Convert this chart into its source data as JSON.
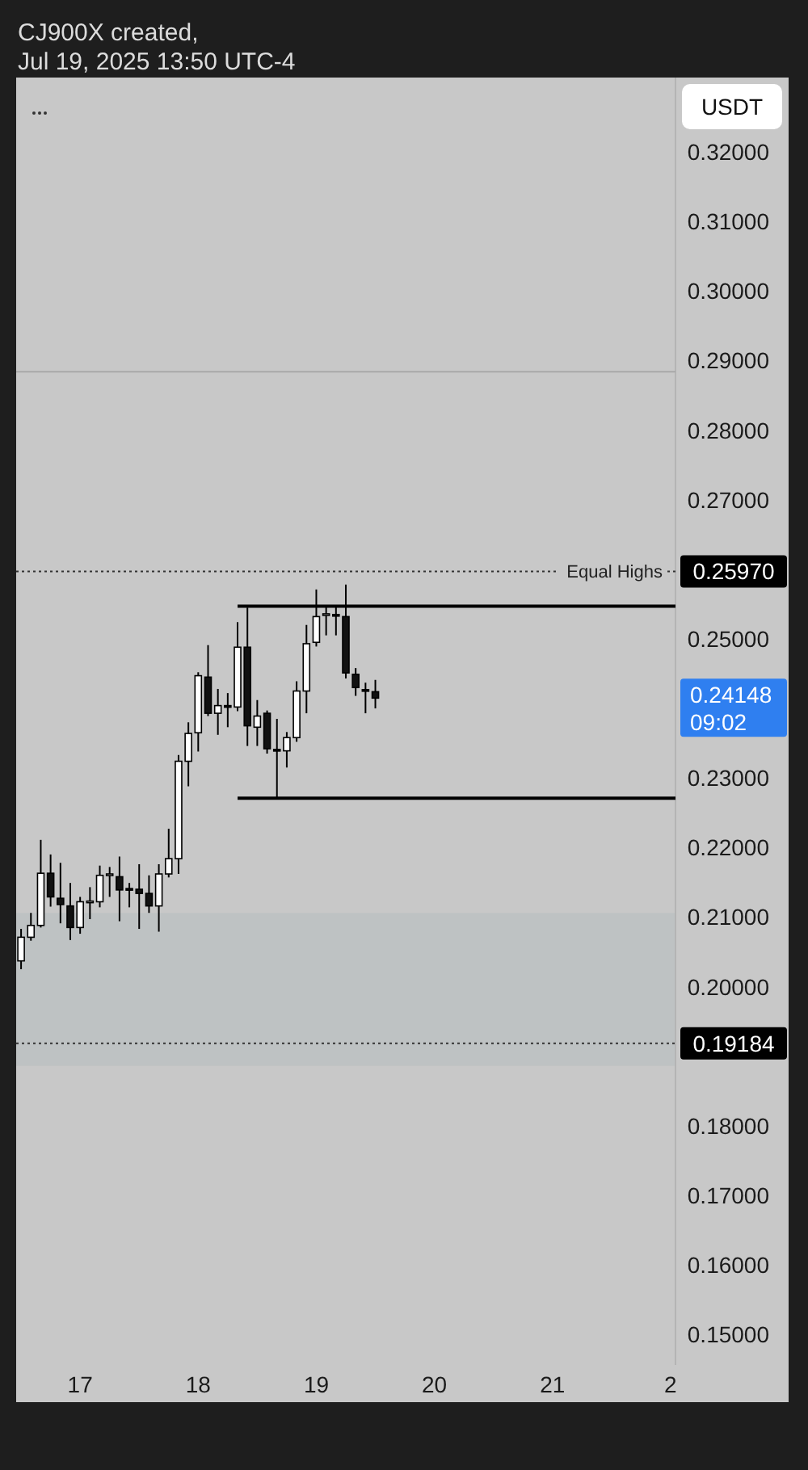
{
  "chart_data": {
    "type": "candlestick",
    "x": [
      "2025-07-16T12:00",
      "2025-07-16T14:00",
      "2025-07-16T16:00",
      "2025-07-16T18:00",
      "2025-07-16T20:00",
      "2025-07-16T22:00",
      "2025-07-17T00:00",
      "2025-07-17T02:00",
      "2025-07-17T04:00",
      "2025-07-17T06:00",
      "2025-07-17T08:00",
      "2025-07-17T10:00",
      "2025-07-17T12:00",
      "2025-07-17T14:00",
      "2025-07-17T16:00",
      "2025-07-17T18:00",
      "2025-07-17T20:00",
      "2025-07-17T22:00",
      "2025-07-18T00:00",
      "2025-07-18T02:00",
      "2025-07-18T04:00",
      "2025-07-18T06:00",
      "2025-07-18T08:00",
      "2025-07-18T10:00",
      "2025-07-18T12:00",
      "2025-07-18T14:00",
      "2025-07-18T16:00",
      "2025-07-18T18:00",
      "2025-07-18T20:00",
      "2025-07-18T22:00",
      "2025-07-19T00:00",
      "2025-07-19T02:00",
      "2025-07-19T04:00",
      "2025-07-19T06:00",
      "2025-07-19T08:00",
      "2025-07-19T10:00",
      "2025-07-19T12:00"
    ],
    "ohlc": [
      [
        0.2037,
        0.2083,
        0.2025,
        0.2071
      ],
      [
        0.2071,
        0.2106,
        0.2066,
        0.2088
      ],
      [
        0.2088,
        0.2211,
        0.2085,
        0.2163
      ],
      [
        0.2163,
        0.219,
        0.2115,
        0.2129
      ],
      [
        0.2127,
        0.2178,
        0.2091,
        0.2118
      ],
      [
        0.2116,
        0.2149,
        0.2067,
        0.2085
      ],
      [
        0.2085,
        0.2129,
        0.2076,
        0.2122
      ],
      [
        0.2122,
        0.2143,
        0.2097,
        0.2123
      ],
      [
        0.2122,
        0.2174,
        0.2114,
        0.216
      ],
      [
        0.216,
        0.2172,
        0.2129,
        0.2162
      ],
      [
        0.2158,
        0.2187,
        0.2094,
        0.2139
      ],
      [
        0.2141,
        0.2149,
        0.2114,
        0.2139
      ],
      [
        0.214,
        0.2176,
        0.2083,
        0.2134
      ],
      [
        0.2134,
        0.216,
        0.2106,
        0.2116
      ],
      [
        0.2116,
        0.2176,
        0.2079,
        0.2162
      ],
      [
        0.2162,
        0.2227,
        0.2157,
        0.2184
      ],
      [
        0.2184,
        0.2333,
        0.2162,
        0.2324
      ],
      [
        0.2324,
        0.238,
        0.2288,
        0.2364
      ],
      [
        0.2365,
        0.2452,
        0.2338,
        0.2447
      ],
      [
        0.2445,
        0.2491,
        0.2389,
        0.2393
      ],
      [
        0.2393,
        0.2428,
        0.2362,
        0.2404
      ],
      [
        0.2404,
        0.2422,
        0.2373,
        0.2402
      ],
      [
        0.2402,
        0.2524,
        0.2396,
        0.2488
      ],
      [
        0.2488,
        0.2545,
        0.2346,
        0.2375
      ],
      [
        0.2373,
        0.2412,
        0.2346,
        0.2389
      ],
      [
        0.2393,
        0.2397,
        0.2335,
        0.2342
      ],
      [
        0.2341,
        0.2385,
        0.2271,
        0.2339
      ],
      [
        0.2339,
        0.2366,
        0.2315,
        0.2358
      ],
      [
        0.2358,
        0.2439,
        0.2352,
        0.2425
      ],
      [
        0.2425,
        0.252,
        0.2393,
        0.2493
      ],
      [
        0.2495,
        0.2571,
        0.2489,
        0.2532
      ],
      [
        0.2534,
        0.2547,
        0.2505,
        0.2536
      ],
      [
        0.2535,
        0.2547,
        0.2505,
        0.2534
      ],
      [
        0.2532,
        0.2578,
        0.2443,
        0.2451
      ],
      [
        0.2449,
        0.2458,
        0.2418,
        0.243
      ],
      [
        0.2427,
        0.2437,
        0.2393,
        0.2426
      ],
      [
        0.2424,
        0.2441,
        0.24,
        0.24148
      ]
    ],
    "series": [
      {
        "type": "line",
        "color": "#000000",
        "x": [
          "2025-07-18T08:00",
          "2025-07-22T01:00"
        ],
        "values": [
          0.2547,
          0.2547
        ]
      },
      {
        "type": "line",
        "color": "#000000",
        "x": [
          "2025-07-18T08:00",
          "2025-07-22T01:00"
        ],
        "values": [
          0.2271,
          0.2271
        ]
      }
    ],
    "xlim": [
      "2025-07-16T11:00",
      "2025-07-22T01:00"
    ],
    "ylim": [
      0.1456,
      0.3307
    ],
    "xticks": [
      {
        "value": "2025-07-17",
        "label": "17"
      },
      {
        "value": "2025-07-18",
        "label": "18"
      },
      {
        "value": "2025-07-19",
        "label": "19"
      },
      {
        "value": "2025-07-20",
        "label": "20"
      },
      {
        "value": "2025-07-21",
        "label": "21"
      },
      {
        "value": "2025-07-22",
        "label": "2"
      }
    ],
    "yticks": [
      {
        "value": 0.15,
        "label": "0.15000"
      },
      {
        "value": 0.16,
        "label": "0.16000"
      },
      {
        "value": 0.17,
        "label": "0.17000"
      },
      {
        "value": 0.18,
        "label": "0.18000"
      },
      {
        "value": 0.2,
        "label": "0.20000"
      },
      {
        "value": 0.21,
        "label": "0.21000"
      },
      {
        "value": 0.22,
        "label": "0.22000"
      },
      {
        "value": 0.23,
        "label": "0.23000"
      },
      {
        "value": 0.25,
        "label": "0.25000"
      },
      {
        "value": 0.27,
        "label": "0.27000"
      },
      {
        "value": 0.28,
        "label": "0.28000"
      },
      {
        "value": 0.29,
        "label": "0.29000"
      },
      {
        "value": 0.3,
        "label": "0.30000"
      },
      {
        "value": 0.31,
        "label": "0.31000"
      },
      {
        "value": 0.32,
        "label": "0.32000"
      }
    ],
    "ref_lines": [
      {
        "axis": "y",
        "value": 0.2597,
        "label": "Equal Highs",
        "line_style": "dotted",
        "color": "#333333"
      },
      {
        "axis": "y",
        "value": 0.19184,
        "label": null,
        "line_style": "dotted",
        "color": "#333333"
      },
      {
        "axis": "y",
        "value": 0.2884,
        "label": null,
        "line_style": "solid",
        "color": "#a9a9a9"
      }
    ],
    "bands": [
      {
        "axis": "y",
        "from": 0.1886,
        "to": 0.2106,
        "color": "#bec2c3"
      }
    ],
    "annotations": [
      "CJ900X created,",
      "Jul 19, 2025 13:50 UTC-4",
      "USDT",
      "0.24148",
      "09:02",
      "0.25970",
      "0.19184"
    ]
  }
}
